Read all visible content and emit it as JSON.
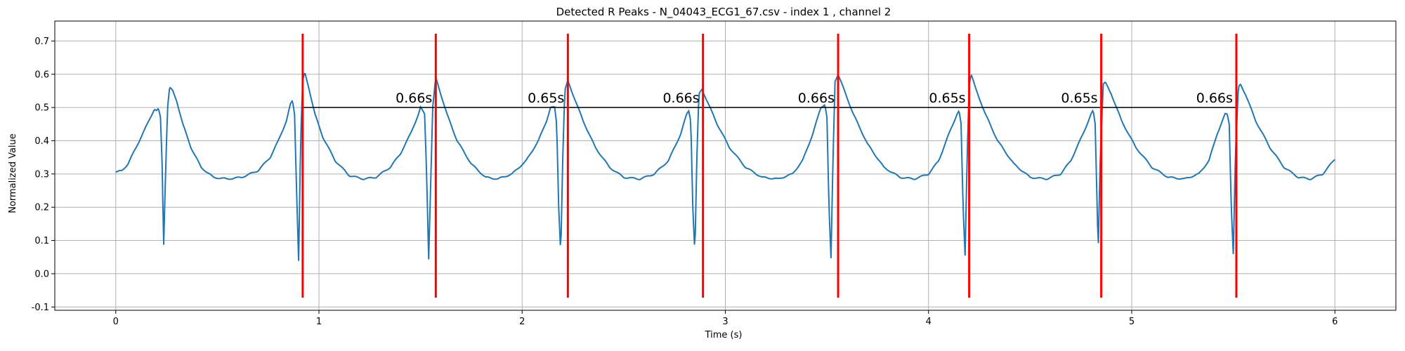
{
  "chart_data": {
    "type": "line",
    "title": "Detected R Peaks - N_04043_ECG1_67.csv - index 1 , channel 2",
    "xlabel": "Time (s)",
    "ylabel": "Normalized Value",
    "xlim": [
      -0.3,
      6.3
    ],
    "ylim": [
      -0.11,
      0.76
    ],
    "x_ticks": [
      0,
      1,
      2,
      3,
      4,
      5,
      6
    ],
    "y_ticks": [
      -0.1,
      0.0,
      0.1,
      0.2,
      0.3,
      0.4,
      0.5,
      0.6,
      0.7
    ],
    "grid": true,
    "colors": {
      "signal": "#1f77b4",
      "peaks": "#ff0000",
      "intervals": "#000000"
    },
    "signal_baseline_keypoints": [
      [
        0.0,
        0.305
      ],
      [
        0.03,
        0.31
      ],
      [
        0.06,
        0.33
      ],
      [
        0.1,
        0.38
      ],
      [
        0.14,
        0.43
      ],
      [
        0.17,
        0.47
      ],
      [
        0.19,
        0.495
      ],
      [
        0.2,
        0.49
      ],
      [
        0.21,
        0.495
      ],
      [
        0.22,
        0.47
      ],
      [
        0.23,
        0.3
      ],
      [
        0.235,
        0.065
      ],
      [
        0.245,
        0.3
      ],
      [
        0.255,
        0.5
      ],
      [
        0.265,
        0.56
      ],
      [
        0.28,
        0.55
      ],
      [
        0.3,
        0.52
      ],
      [
        0.33,
        0.45
      ],
      [
        0.37,
        0.38
      ],
      [
        0.42,
        0.32
      ],
      [
        0.48,
        0.29
      ],
      [
        0.55,
        0.285
      ],
      [
        0.62,
        0.29
      ],
      [
        0.7,
        0.31
      ],
      [
        0.76,
        0.35
      ],
      [
        0.8,
        0.4
      ],
      [
        0.84,
        0.46
      ],
      [
        0.86,
        0.51
      ],
      [
        0.87,
        0.52
      ],
      [
        0.88,
        0.48
      ],
      [
        0.89,
        0.25
      ],
      [
        0.9,
        0.04
      ],
      [
        0.91,
        0.4
      ],
      [
        0.92,
        0.58
      ],
      [
        0.93,
        0.605
      ],
      [
        0.95,
        0.56
      ],
      [
        0.98,
        0.48
      ],
      [
        1.02,
        0.41
      ],
      [
        1.08,
        0.34
      ],
      [
        1.15,
        0.295
      ],
      [
        1.22,
        0.285
      ],
      [
        1.28,
        0.29
      ],
      [
        1.35,
        0.32
      ],
      [
        1.4,
        0.36
      ],
      [
        1.45,
        0.42
      ],
      [
        1.49,
        0.48
      ],
      [
        1.5,
        0.5
      ],
      [
        1.52,
        0.48
      ],
      [
        1.53,
        0.3
      ],
      [
        1.54,
        0.045
      ],
      [
        1.56,
        0.5
      ],
      [
        1.575,
        0.59
      ],
      [
        1.59,
        0.56
      ],
      [
        1.63,
        0.48
      ],
      [
        1.68,
        0.4
      ],
      [
        1.75,
        0.33
      ],
      [
        1.82,
        0.29
      ],
      [
        1.88,
        0.285
      ],
      [
        1.95,
        0.3
      ],
      [
        2.02,
        0.34
      ],
      [
        2.08,
        0.4
      ],
      [
        2.12,
        0.46
      ],
      [
        2.14,
        0.5
      ],
      [
        2.16,
        0.5
      ],
      [
        2.17,
        0.45
      ],
      [
        2.18,
        0.2
      ],
      [
        2.19,
        0.06
      ],
      [
        2.2,
        0.35
      ],
      [
        2.21,
        0.55
      ],
      [
        2.225,
        0.58
      ],
      [
        2.25,
        0.54
      ],
      [
        2.3,
        0.46
      ],
      [
        2.36,
        0.38
      ],
      [
        2.43,
        0.32
      ],
      [
        2.5,
        0.29
      ],
      [
        2.58,
        0.285
      ],
      [
        2.65,
        0.3
      ],
      [
        2.72,
        0.34
      ],
      [
        2.78,
        0.42
      ],
      [
        2.81,
        0.48
      ],
      [
        2.82,
        0.49
      ],
      [
        2.83,
        0.46
      ],
      [
        2.84,
        0.2
      ],
      [
        2.85,
        0.06
      ],
      [
        2.86,
        0.35
      ],
      [
        2.87,
        0.54
      ],
      [
        2.885,
        0.555
      ],
      [
        2.91,
        0.52
      ],
      [
        2.96,
        0.45
      ],
      [
        3.02,
        0.38
      ],
      [
        3.1,
        0.32
      ],
      [
        3.18,
        0.29
      ],
      [
        3.26,
        0.285
      ],
      [
        3.33,
        0.3
      ],
      [
        3.38,
        0.34
      ],
      [
        3.43,
        0.42
      ],
      [
        3.47,
        0.5
      ],
      [
        3.49,
        0.51
      ],
      [
        3.5,
        0.47
      ],
      [
        3.51,
        0.2
      ],
      [
        3.52,
        0.045
      ],
      [
        3.53,
        0.35
      ],
      [
        3.54,
        0.58
      ],
      [
        3.555,
        0.6
      ],
      [
        3.58,
        0.56
      ],
      [
        3.63,
        0.48
      ],
      [
        3.7,
        0.39
      ],
      [
        3.78,
        0.32
      ],
      [
        3.86,
        0.29
      ],
      [
        3.93,
        0.285
      ],
      [
        4.0,
        0.3
      ],
      [
        4.05,
        0.34
      ],
      [
        4.1,
        0.42
      ],
      [
        4.14,
        0.48
      ],
      [
        4.15,
        0.49
      ],
      [
        4.16,
        0.45
      ],
      [
        4.17,
        0.2
      ],
      [
        4.18,
        0.055
      ],
      [
        4.19,
        0.35
      ],
      [
        4.2,
        0.57
      ],
      [
        4.21,
        0.6
      ],
      [
        4.23,
        0.56
      ],
      [
        4.28,
        0.48
      ],
      [
        4.34,
        0.4
      ],
      [
        4.42,
        0.33
      ],
      [
        4.5,
        0.29
      ],
      [
        4.58,
        0.285
      ],
      [
        4.65,
        0.3
      ],
      [
        4.7,
        0.34
      ],
      [
        4.76,
        0.42
      ],
      [
        4.8,
        0.48
      ],
      [
        4.81,
        0.49
      ],
      [
        4.82,
        0.45
      ],
      [
        4.83,
        0.2
      ],
      [
        4.835,
        0.065
      ],
      [
        4.845,
        0.35
      ],
      [
        4.86,
        0.57
      ],
      [
        4.87,
        0.575
      ],
      [
        4.9,
        0.54
      ],
      [
        4.95,
        0.46
      ],
      [
        5.02,
        0.38
      ],
      [
        5.1,
        0.32
      ],
      [
        5.18,
        0.29
      ],
      [
        5.26,
        0.285
      ],
      [
        5.33,
        0.3
      ],
      [
        5.38,
        0.34
      ],
      [
        5.42,
        0.42
      ],
      [
        5.46,
        0.48
      ],
      [
        5.47,
        0.48
      ],
      [
        5.48,
        0.45
      ],
      [
        5.49,
        0.2
      ],
      [
        5.5,
        0.06
      ],
      [
        5.51,
        0.35
      ],
      [
        5.525,
        0.56
      ],
      [
        5.535,
        0.57
      ],
      [
        5.56,
        0.54
      ],
      [
        5.61,
        0.46
      ],
      [
        5.68,
        0.38
      ],
      [
        5.75,
        0.32
      ],
      [
        5.82,
        0.29
      ],
      [
        5.88,
        0.285
      ],
      [
        5.94,
        0.3
      ],
      [
        5.98,
        0.33
      ],
      [
        6.0,
        0.345
      ]
    ],
    "r_peaks": [
      0.92,
      1.575,
      2.225,
      2.89,
      3.555,
      4.2,
      4.85,
      5.515
    ],
    "r_peak_line_range": [
      -0.072,
      0.722
    ],
    "interval_level": 0.5,
    "intervals": [
      {
        "start": 0.92,
        "end": 1.575,
        "label": "0.66s"
      },
      {
        "start": 1.575,
        "end": 2.225,
        "label": "0.65s"
      },
      {
        "start": 2.225,
        "end": 2.89,
        "label": "0.66s"
      },
      {
        "start": 2.89,
        "end": 3.555,
        "label": "0.66s"
      },
      {
        "start": 3.555,
        "end": 4.2,
        "label": "0.65s"
      },
      {
        "start": 4.2,
        "end": 4.85,
        "label": "0.65s"
      },
      {
        "start": 4.85,
        "end": 5.515,
        "label": "0.66s"
      }
    ]
  }
}
